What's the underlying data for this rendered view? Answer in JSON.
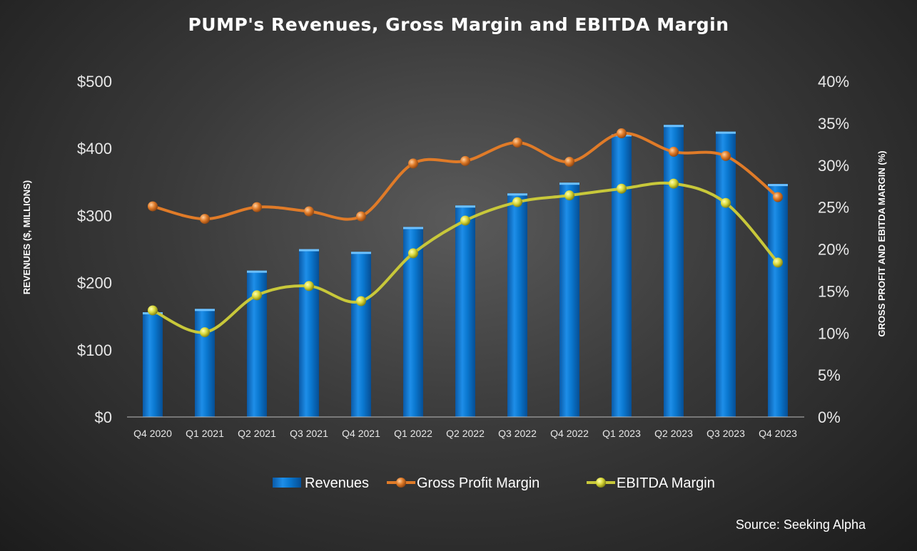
{
  "chart_data": {
    "type": "bar+line",
    "title": "PUMP's Revenues, Gross Margin and EBITDA Margin",
    "ylabel": "REVENUES ($, MILLIONS)",
    "y2label": "GROSS PROFIT AND EBITDA MARGIN (%)",
    "ylim": [
      0,
      500
    ],
    "y2lim": [
      0,
      40
    ],
    "yticks": [
      "$0",
      "$100",
      "$200",
      "$300",
      "$400",
      "$500"
    ],
    "y2ticks": [
      "0%",
      "5%",
      "10%",
      "15%",
      "20%",
      "25%",
      "30%",
      "35%",
      "40%"
    ],
    "categories": [
      "Q4 2020",
      "Q1 2021",
      "Q2 2021",
      "Q3 2021",
      "Q4 2021",
      "Q1 2022",
      "Q2 2022",
      "Q3 2022",
      "Q4 2022",
      "Q1 2023",
      "Q2 2023",
      "Q3 2023",
      "Q4 2023"
    ],
    "series": [
      {
        "name": "Revenues",
        "type": "bar",
        "axis": "left",
        "color": "#0a78d0",
        "values": [
          156,
          161,
          218,
          250,
          246,
          283,
          315,
          333,
          349,
          421,
          435,
          425,
          347
        ]
      },
      {
        "name": "Gross Profit Margin",
        "type": "line",
        "axis": "right",
        "color": "#e07b28",
        "values": [
          25.1,
          23.6,
          25.0,
          24.5,
          23.9,
          30.2,
          30.5,
          32.7,
          30.4,
          33.8,
          31.6,
          31.1,
          26.2
        ]
      },
      {
        "name": "EBITDA Margin",
        "type": "line",
        "axis": "right",
        "color": "#c8c83a",
        "values": [
          12.7,
          10.1,
          14.5,
          15.6,
          13.8,
          19.5,
          23.4,
          25.6,
          26.4,
          27.2,
          27.8,
          25.5,
          18.4
        ]
      }
    ],
    "legend": "bottom",
    "grid": false
  },
  "source": "Source: Seeking Alpha"
}
